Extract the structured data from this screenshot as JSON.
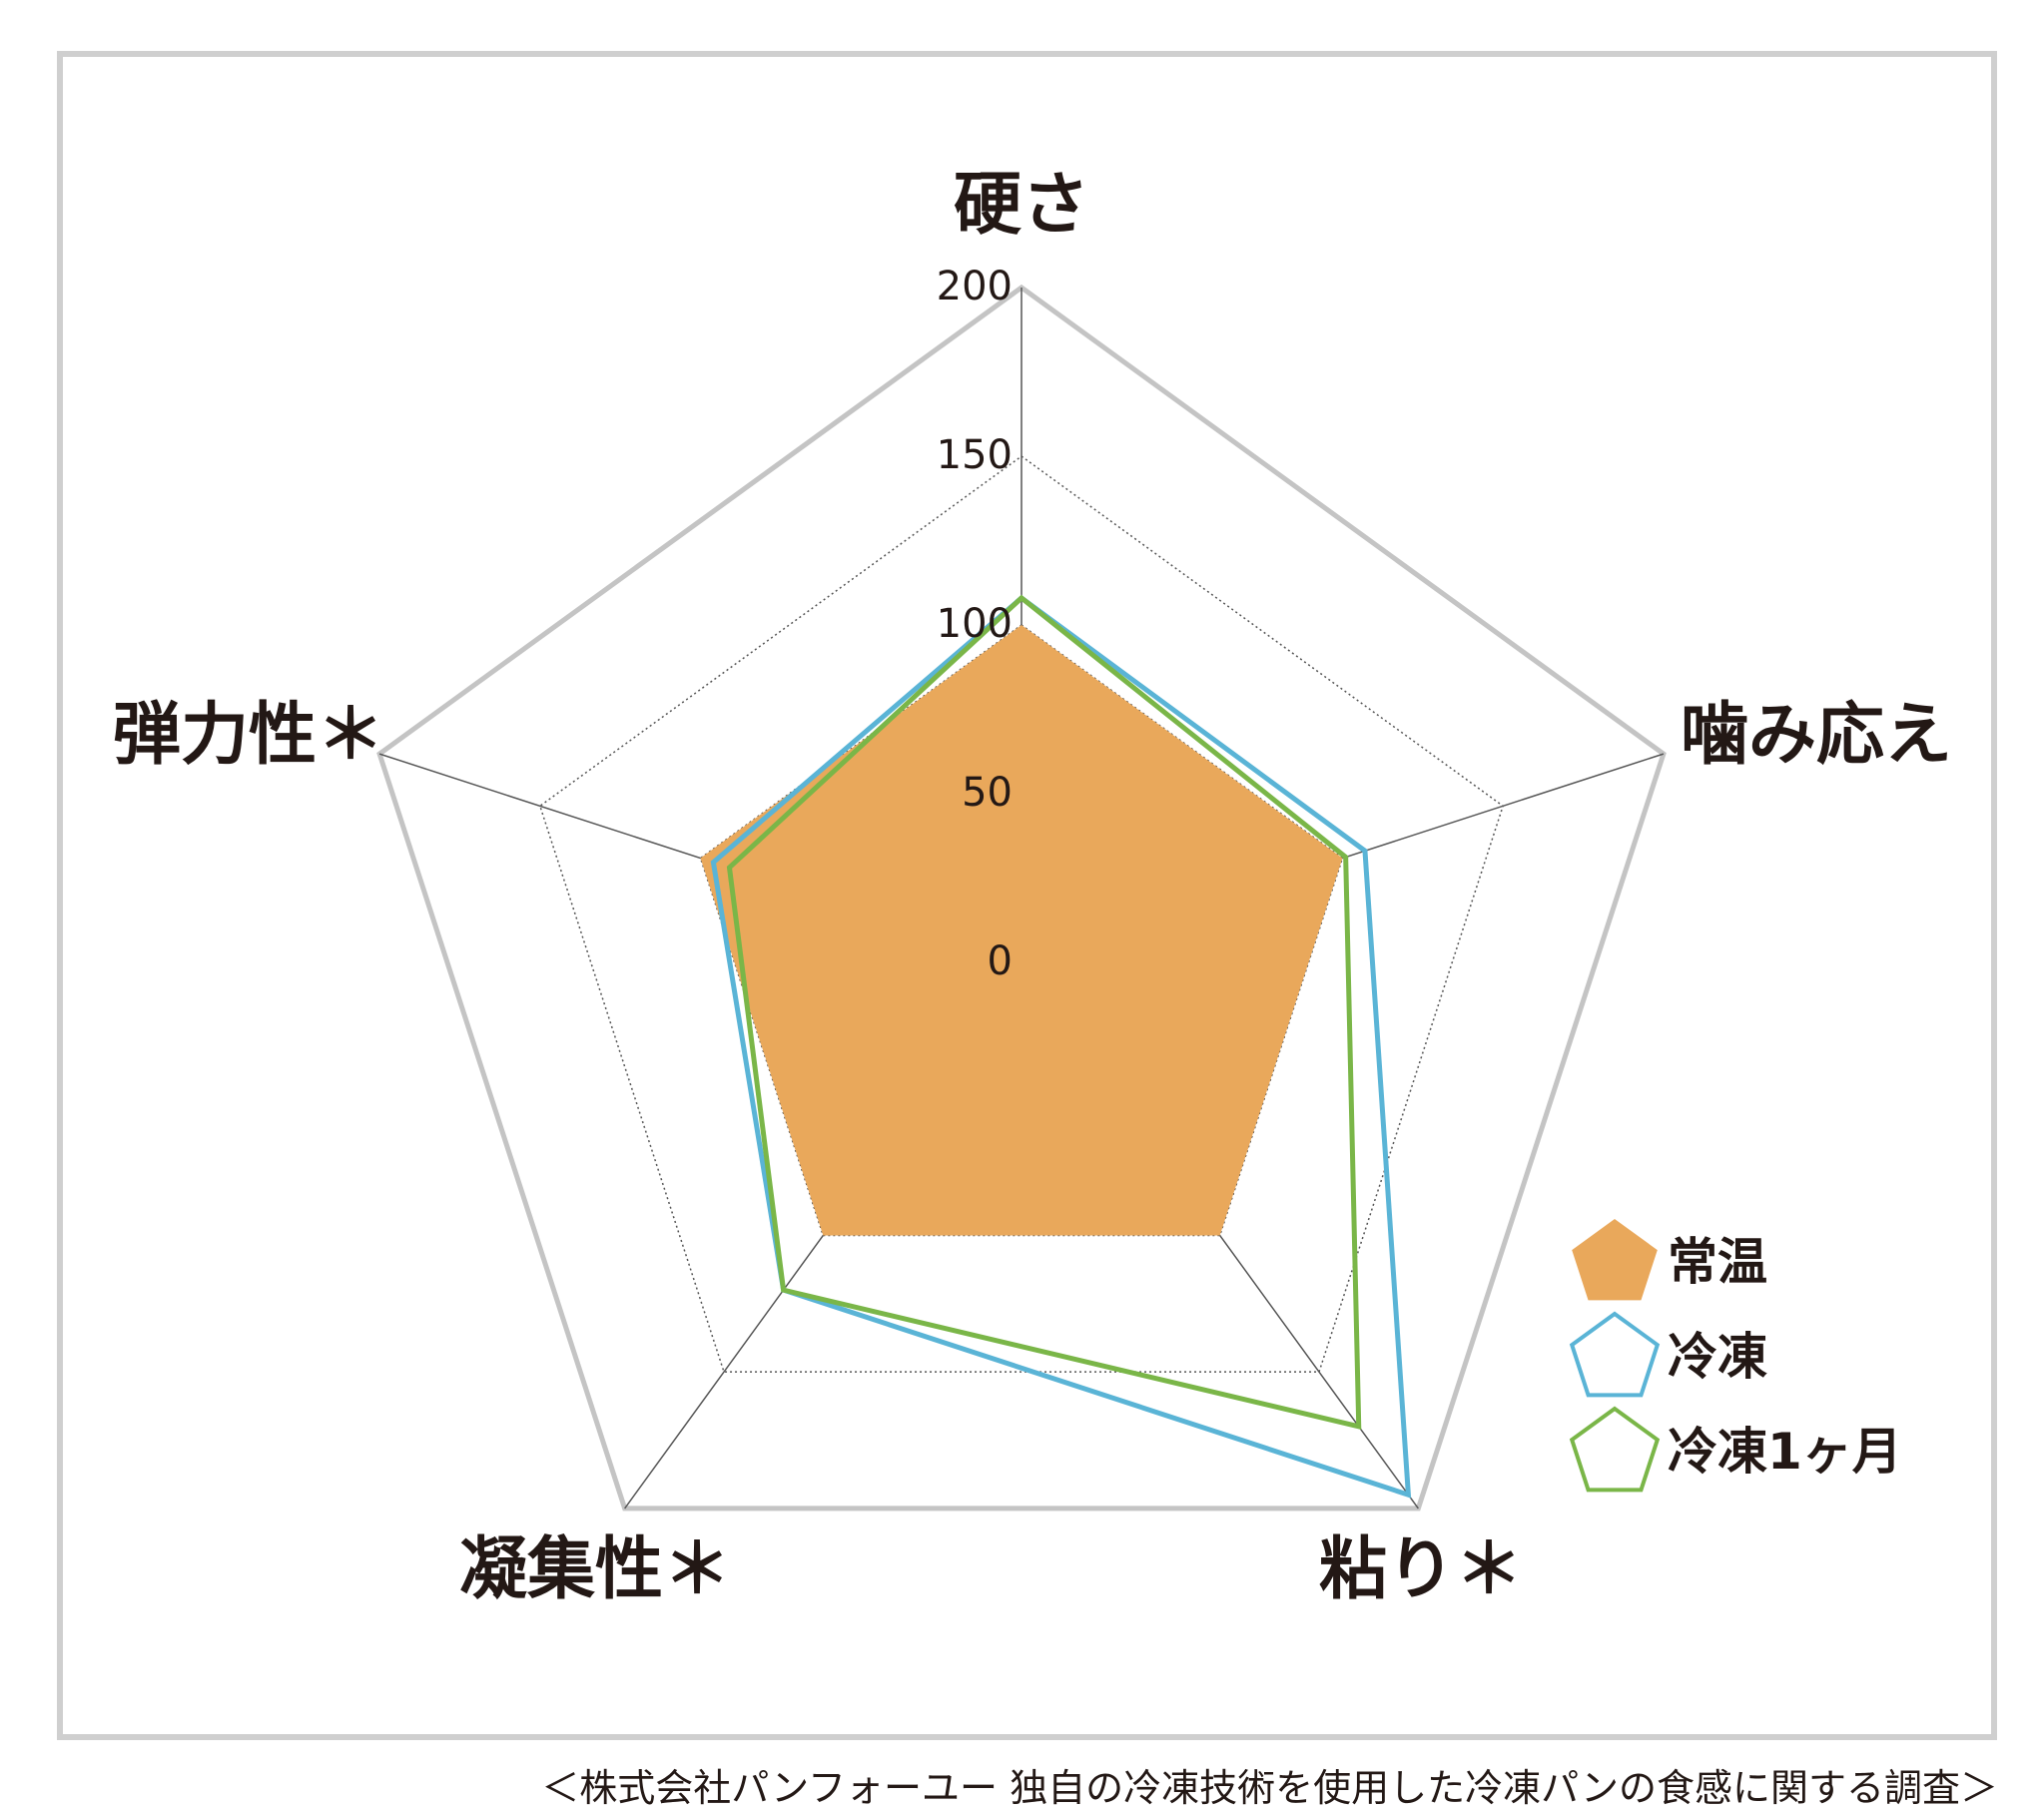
{
  "chart_data": {
    "type": "radar",
    "axes": [
      "硬さ",
      "噛み応え",
      "粘り＊",
      "凝集性＊",
      "弾力性＊"
    ],
    "axis_ticks": [
      "0",
      "50",
      "100",
      "150",
      "200"
    ],
    "r_range": [
      0,
      200
    ],
    "series": [
      {
        "name": "常温",
        "values": [
          100,
          100,
          100,
          100,
          100
        ],
        "color": "#e9a85b",
        "style": "filled"
      },
      {
        "name": "冷凍",
        "values": [
          108,
          107,
          195,
          120,
          96
        ],
        "color": "#5ab4d6",
        "style": "outline"
      },
      {
        "name": "冷凍1ヶ月",
        "values": [
          108,
          101,
          170,
          120,
          91
        ],
        "color": "#7ab648",
        "style": "outline"
      }
    ],
    "legend_position": "bottom-right"
  },
  "caption": "＜株式会社パンフォーユー 独自の冷凍技術を使用した冷凍パンの食感に関する調査＞"
}
